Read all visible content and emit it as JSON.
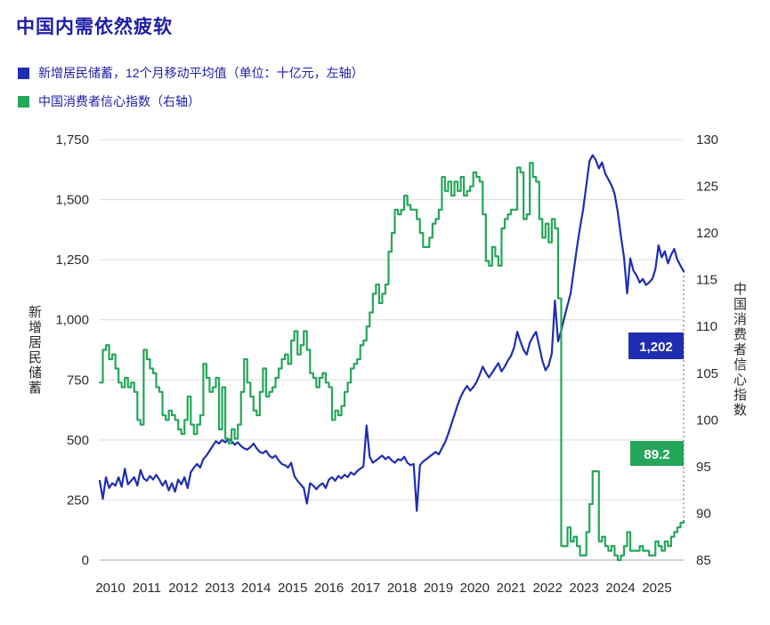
{
  "title": "中国内需依然疲软",
  "legend": [
    {
      "label": "新增居民储蓄，12个月移动平均值（单位：十亿元，左轴）",
      "color": "#1f2eb0"
    },
    {
      "label": "中国消费者信心指数（右轴）",
      "color": "#26a65a"
    }
  ],
  "chart_data": {
    "type": "line",
    "title": "中国内需依然疲软",
    "x_frequency": "monthly",
    "x_range": [
      "2010-01",
      "2025-07"
    ],
    "x_tick_labels": [
      "2010",
      "2011",
      "2012",
      "2013",
      "2014",
      "2015",
      "2016",
      "2017",
      "2018",
      "2019",
      "2020",
      "2021",
      "2022",
      "2023",
      "2024",
      "2025"
    ],
    "grid": "horizontal",
    "legend_position": "top-left",
    "left_axis": {
      "title": "新增居民储蓄",
      "min": 0,
      "max": 1750,
      "ticks": [
        1750,
        1500,
        1250,
        1000,
        750,
        500,
        250,
        0
      ]
    },
    "right_axis": {
      "title": "中国消费者信心指数",
      "min": 85,
      "max": 130,
      "ticks": [
        130,
        125,
        120,
        115,
        110,
        105,
        100,
        95,
        90,
        85
      ]
    },
    "series": [
      {
        "id": "savings",
        "name": "新增居民储蓄，12个月移动平均值（单位：十亿元，左轴）",
        "axis": "left",
        "color": "#1f2eb0",
        "interpolation": "linear",
        "end_label": "1,202",
        "end_value": 1202,
        "values": [
          330,
          255,
          345,
          300,
          320,
          310,
          345,
          305,
          380,
          315,
          330,
          345,
          310,
          375,
          340,
          330,
          350,
          335,
          355,
          335,
          310,
          330,
          290,
          320,
          285,
          335,
          315,
          345,
          300,
          365,
          385,
          400,
          385,
          420,
          435,
          455,
          475,
          495,
          485,
          500,
          490,
          505,
          495,
          480,
          490,
          475,
          465,
          460,
          470,
          485,
          465,
          450,
          445,
          455,
          435,
          425,
          435,
          415,
          400,
          395,
          385,
          405,
          350,
          330,
          315,
          300,
          235,
          320,
          310,
          295,
          310,
          320,
          300,
          335,
          345,
          330,
          350,
          340,
          355,
          345,
          365,
          355,
          370,
          380,
          390,
          560,
          430,
          405,
          415,
          425,
          435,
          420,
          430,
          415,
          405,
          420,
          415,
          430,
          405,
          395,
          400,
          205,
          395,
          410,
          420,
          430,
          440,
          450,
          440,
          465,
          490,
          525,
          565,
          605,
          645,
          680,
          705,
          725,
          705,
          720,
          740,
          770,
          805,
          780,
          760,
          780,
          800,
          820,
          785,
          805,
          830,
          850,
          885,
          950,
          910,
          875,
          855,
          905,
          930,
          950,
          890,
          830,
          790,
          810,
          860,
          1080,
          910,
          955,
          1010,
          1060,
          1110,
          1205,
          1300,
          1385,
          1460,
          1560,
          1660,
          1685,
          1665,
          1630,
          1655,
          1610,
          1585,
          1560,
          1525,
          1450,
          1350,
          1260,
          1110,
          1255,
          1205,
          1185,
          1155,
          1170,
          1145,
          1155,
          1170,
          1210,
          1310,
          1260,
          1285,
          1235,
          1270,
          1295,
          1250,
          1225,
          1202
        ]
      },
      {
        "id": "cci",
        "name": "中国消费者信心指数（右轴）",
        "axis": "right",
        "color": "#26a65a",
        "interpolation": "step",
        "end_label": "89.2",
        "end_value": 89.2,
        "values": [
          104,
          107.5,
          108,
          106.5,
          107,
          105.5,
          104,
          103.5,
          104.5,
          103.5,
          104,
          103,
          100,
          99.5,
          107.5,
          106.5,
          105.5,
          105,
          103.5,
          103,
          100.5,
          100,
          101,
          100.5,
          100,
          99,
          98.5,
          100,
          102.5,
          99.5,
          98.5,
          99.5,
          100.5,
          106,
          104.5,
          103,
          103.5,
          104.5,
          99,
          103.5,
          98,
          97.5,
          99,
          98,
          99.5,
          103,
          106.5,
          104,
          102.5,
          101,
          100.5,
          103,
          105.5,
          102.5,
          103,
          103.5,
          104.5,
          105.5,
          106.5,
          107,
          106,
          108.5,
          109.5,
          107,
          108,
          109.5,
          107.5,
          105,
          104.5,
          103.5,
          104.5,
          105,
          104,
          103.5,
          100,
          101,
          100.5,
          101.5,
          103,
          104,
          105.5,
          106,
          106.5,
          108,
          108.5,
          110,
          111.5,
          113.5,
          114.5,
          112.5,
          113.5,
          114.5,
          118,
          120,
          122.5,
          122,
          122.5,
          124,
          123,
          122.5,
          122.5,
          121.5,
          120,
          118.5,
          118.5,
          119.5,
          121,
          121.5,
          122.5,
          126,
          124.5,
          125.5,
          124,
          125.5,
          124.5,
          126,
          124,
          124.5,
          125,
          126.5,
          126,
          125.5,
          122,
          117,
          116.5,
          118.5,
          117.5,
          116.5,
          120.5,
          121.5,
          122,
          122.5,
          122.5,
          127,
          126.5,
          121.5,
          122,
          127.5,
          126,
          125.5,
          121.5,
          119.5,
          121,
          119,
          121.5,
          120.5,
          113,
          86.5,
          86.5,
          88.5,
          87,
          87.5,
          86.5,
          85.5,
          85.5,
          88,
          91,
          94.5,
          94.5,
          87,
          87.5,
          86.5,
          86,
          86.5,
          85.5,
          85,
          85.5,
          86.5,
          88,
          86,
          86,
          86,
          86.5,
          86,
          86,
          85.5,
          85.5,
          87,
          86.5,
          86,
          87,
          86.5,
          87.5,
          88,
          88.5,
          89,
          89.2
        ]
      }
    ]
  }
}
